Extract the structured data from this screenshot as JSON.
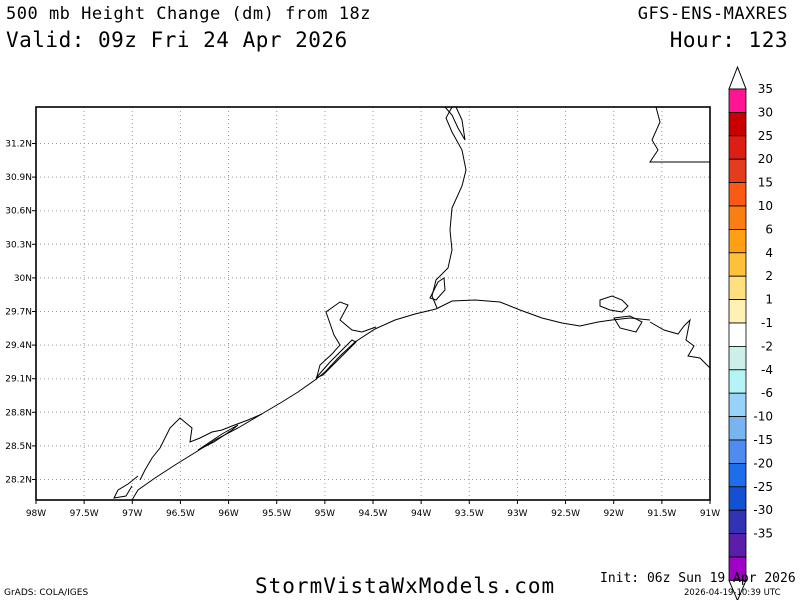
{
  "header": {
    "title": "500 mb Height Change (dm) from 18z",
    "valid": "Valid: 09z Fri 24 Apr 2026",
    "model": "GFS-ENS-MAXRES",
    "hour": "Hour: 123"
  },
  "map": {
    "lat_labels": [
      "31.2N",
      "30.9N",
      "30.6N",
      "30.3N",
      "30N",
      "29.7N",
      "29.4N",
      "29.1N",
      "28.8N",
      "28.5N",
      "28.2N"
    ],
    "lon_labels": [
      "98W",
      "97.5W",
      "97W",
      "96.5W",
      "96W",
      "95.5W",
      "95W",
      "94.5W",
      "94W",
      "93.5W",
      "93W",
      "92.5W",
      "92W",
      "91.5W",
      "91W"
    ],
    "grid": "dotted",
    "colors": {
      "frame": "#000000",
      "coast": "#000000",
      "grid": "#9a9a9a"
    }
  },
  "colorbar": {
    "labels": [
      "35",
      "30",
      "25",
      "20",
      "15",
      "10",
      "6",
      "4",
      "2",
      "1",
      "-1",
      "-2",
      "-4",
      "-6",
      "-10",
      "-15",
      "-20",
      "-25",
      "-30",
      "-35"
    ],
    "colors": [
      "#ff1493",
      "#c80000",
      "#dc1e14",
      "#e63c1e",
      "#fa5a14",
      "#fa7e14",
      "#ffa014",
      "#ffc03c",
      "#ffe080",
      "#fff0b4",
      "#ffffff",
      "#cdefe9",
      "#b5f4f4",
      "#96d2fa",
      "#78b4f0",
      "#508cf0",
      "#1e6eeb",
      "#1450d2",
      "#3232b4",
      "#5a1eaa",
      "#a000c8"
    ]
  },
  "footer": {
    "left": "GrADS: COLA/IGES",
    "site": "StormVistaWxModels.com",
    "init": "Init: 06z Sun 19 Apr 2026",
    "generated": "2026-04-19-10:39 UTC"
  }
}
